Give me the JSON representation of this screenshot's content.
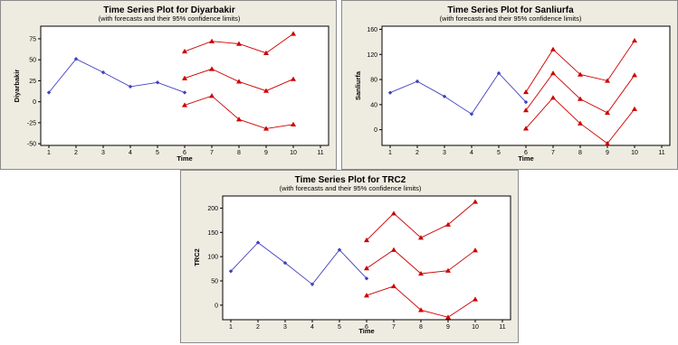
{
  "colors": {
    "panel_bg": "#eeece1",
    "plot_bg": "#ffffff",
    "actual": "#4040c0",
    "forecast": "#cc0000",
    "frame": "#000000"
  },
  "chart_data": [
    {
      "type": "line",
      "title": "Time Series Plot for Diyarbakir",
      "subtitle": "(with forecasts and their 95% confidence limits)",
      "xlabel": "Time",
      "ylabel": "Diyarbakir",
      "xlim": [
        0.7,
        11.3
      ],
      "ylim": [
        -52,
        90
      ],
      "xticks": [
        1,
        2,
        3,
        4,
        5,
        6,
        7,
        8,
        9,
        10,
        11
      ],
      "yticks": [
        -50,
        -25,
        0,
        25,
        50,
        75
      ],
      "grid": false,
      "legend": "none",
      "series": [
        {
          "role": "actual",
          "x": [
            1,
            2,
            3,
            4,
            5,
            6
          ],
          "y": [
            11,
            51,
            35,
            18,
            23,
            11
          ]
        },
        {
          "role": "upper",
          "x": [
            6,
            7,
            8,
            9,
            10
          ],
          "y": [
            60,
            72,
            69,
            58,
            81
          ]
        },
        {
          "role": "forecast",
          "x": [
            6,
            7,
            8,
            9,
            10
          ],
          "y": [
            28,
            39,
            24,
            13,
            27
          ]
        },
        {
          "role": "lower",
          "x": [
            6,
            7,
            8,
            9,
            10
          ],
          "y": [
            -4,
            7,
            -21,
            -32,
            -27
          ]
        }
      ]
    },
    {
      "type": "line",
      "title": "Time Series Plot for Sanliurfa",
      "subtitle": "(with forecasts and their 95% confidence limits)",
      "xlabel": "Time",
      "ylabel": "Sanliurfa",
      "xlim": [
        0.7,
        11.3
      ],
      "ylim": [
        -25,
        165
      ],
      "xticks": [
        1,
        2,
        3,
        4,
        5,
        6,
        7,
        8,
        9,
        10,
        11
      ],
      "yticks": [
        0,
        40,
        80,
        120,
        160
      ],
      "grid": false,
      "legend": "none",
      "series": [
        {
          "role": "actual",
          "x": [
            1,
            2,
            3,
            4,
            5,
            6
          ],
          "y": [
            59,
            77,
            53,
            25,
            90,
            44
          ]
        },
        {
          "role": "upper",
          "x": [
            6,
            7,
            8,
            9,
            10
          ],
          "y": [
            60,
            128,
            88,
            78,
            142
          ]
        },
        {
          "role": "forecast",
          "x": [
            6,
            7,
            8,
            9,
            10
          ],
          "y": [
            31,
            90,
            49,
            27,
            87
          ]
        },
        {
          "role": "lower",
          "x": [
            6,
            7,
            8,
            9,
            10
          ],
          "y": [
            2,
            51,
            10,
            -22,
            33
          ]
        }
      ]
    },
    {
      "type": "line",
      "title": "Time Series Plot for TRC2",
      "subtitle": "(with forecasts and their 95% confidence limits)",
      "xlabel": "Time",
      "ylabel": "TRC2",
      "xlim": [
        0.7,
        11.3
      ],
      "ylim": [
        -30,
        225
      ],
      "xticks": [
        1,
        2,
        3,
        4,
        5,
        6,
        7,
        8,
        9,
        10,
        11
      ],
      "yticks": [
        0,
        50,
        100,
        150,
        200
      ],
      "grid": false,
      "legend": "none",
      "series": [
        {
          "role": "actual",
          "x": [
            1,
            2,
            3,
            4,
            5,
            6
          ],
          "y": [
            70,
            129,
            87,
            43,
            114,
            55
          ]
        },
        {
          "role": "upper",
          "x": [
            6,
            7,
            8,
            9,
            10
          ],
          "y": [
            134,
            189,
            139,
            166,
            213
          ]
        },
        {
          "role": "forecast",
          "x": [
            6,
            7,
            8,
            9,
            10
          ],
          "y": [
            76,
            114,
            65,
            71,
            113
          ]
        },
        {
          "role": "lower",
          "x": [
            6,
            7,
            8,
            9,
            10
          ],
          "y": [
            20,
            39,
            -10,
            -25,
            12
          ]
        }
      ]
    }
  ]
}
